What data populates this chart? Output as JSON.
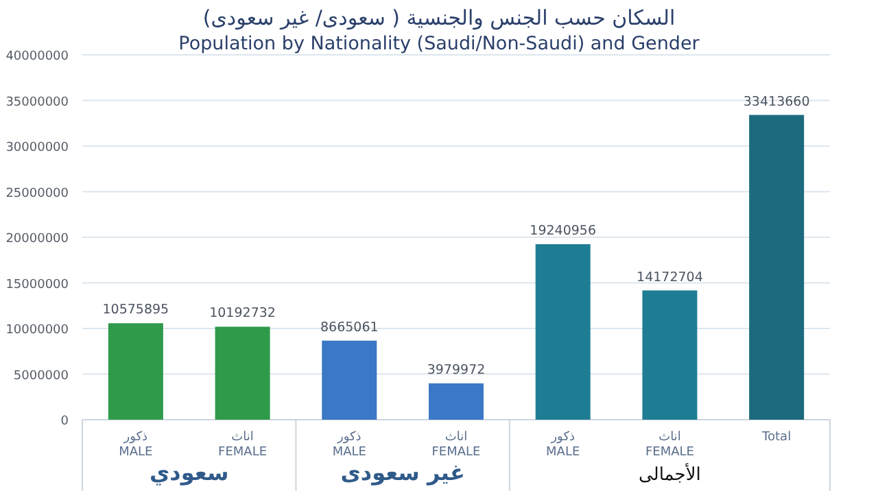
{
  "chart_data": {
    "type": "bar",
    "title": "السكان حسب الجنس والجنسية ( سعودى/ غير سعودى)",
    "subtitle": "Population by Nationality (Saudi/Non-Saudi)  and Gender",
    "categories": [
      "ذكور\nMALE",
      "اناث\nFEMALE",
      "ذكور\nMALE",
      "اناث\nFEMALE",
      "ذكور\nMALE",
      "اناث\nFEMALE",
      "Total"
    ],
    "values": [
      10575895,
      10192732,
      8665061,
      3979972,
      19240956,
      14172704,
      33413660
    ],
    "colors": [
      "#2e9a4a",
      "#2e9a4a",
      "#3b78c6",
      "#3b78c6",
      "#1f7d93",
      "#1f7d93",
      "#1d6a7e"
    ],
    "ylim": [
      0,
      40000000
    ],
    "yticks": [
      0,
      5000000,
      10000000,
      15000000,
      20000000,
      25000000,
      30000000,
      35000000,
      40000000
    ],
    "grid": "y",
    "data_labels": true,
    "annotations": [
      "سعودي",
      "غير سعودى",
      "الأجمالى"
    ]
  }
}
